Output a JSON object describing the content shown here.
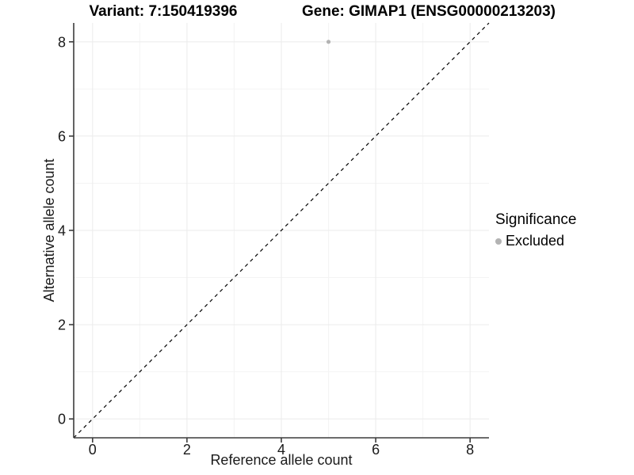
{
  "chart_data": {
    "type": "scatter",
    "title_variant": "Variant: 7:150419396",
    "title_gene": "Gene: GIMAP1 (ENSG00000213203)",
    "xlabel": "Reference allele count",
    "ylabel": "Alternative allele count",
    "xlim": [
      -0.4,
      8.4
    ],
    "ylim": [
      -0.4,
      8.4
    ],
    "xticks": [
      0,
      2,
      4,
      6,
      8
    ],
    "yticks": [
      0,
      2,
      4,
      6,
      8
    ],
    "x_minor": [
      1,
      3,
      5,
      7
    ],
    "y_minor": [
      1,
      3,
      5,
      7
    ],
    "grid": true,
    "points": [
      {
        "x": 5,
        "y": 8,
        "significance": "Excluded"
      }
    ],
    "identity_line": {
      "from": -0.4,
      "to": 8.4,
      "style": "dashed",
      "color": "#000000"
    },
    "legend": {
      "position": "right",
      "title": "Significance",
      "entries": [
        {
          "label": "Excluded",
          "color": "#b3b3b3"
        }
      ]
    },
    "colors": {
      "point_excluded": "#b3b3b3",
      "grid_major": "#ebebeb",
      "grid_minor": "#f4f4f4",
      "axis_line": "#3c3c3c",
      "tick_text": "#1a1a1a"
    }
  }
}
